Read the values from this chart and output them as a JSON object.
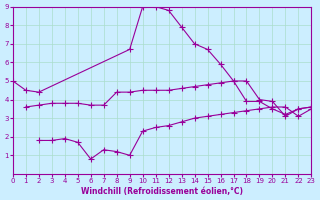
{
  "title": "",
  "xlabel": "Windchill (Refroidissement éolien,°C)",
  "ylabel": "",
  "bg_color": "#cceeff",
  "line_color": "#990099",
  "xlim": [
    0,
    23
  ],
  "ylim": [
    0,
    9
  ],
  "xticks": [
    0,
    1,
    2,
    3,
    4,
    5,
    6,
    7,
    8,
    9,
    10,
    11,
    12,
    13,
    14,
    15,
    16,
    17,
    18,
    19,
    20,
    21,
    22,
    23
  ],
  "yticks": [
    1,
    2,
    3,
    4,
    5,
    6,
    7,
    8,
    9
  ],
  "line1_x": [
    0,
    1,
    2,
    9,
    10,
    11,
    12,
    13,
    14,
    15,
    16,
    17,
    18,
    19,
    20,
    21,
    22,
    23
  ],
  "line1_y": [
    5.0,
    4.5,
    4.4,
    6.7,
    9.0,
    9.0,
    8.8,
    7.9,
    7.0,
    6.7,
    5.9,
    5.0,
    3.9,
    3.9,
    3.5,
    3.2,
    3.5,
    3.6
  ],
  "line2_x": [
    1,
    2,
    3,
    4,
    5,
    6,
    7,
    8,
    9,
    10,
    11,
    12,
    13,
    14,
    15,
    16,
    17,
    18,
    19,
    20,
    21,
    22,
    23
  ],
  "line2_y": [
    3.6,
    3.7,
    3.8,
    3.8,
    3.8,
    3.7,
    3.7,
    4.4,
    4.4,
    4.5,
    4.5,
    4.5,
    4.6,
    4.7,
    4.8,
    4.9,
    5.0,
    5.0,
    4.0,
    3.9,
    3.1,
    3.5,
    3.6
  ],
  "line3_x": [
    2,
    3,
    4,
    5,
    6,
    7,
    8,
    9,
    10,
    11,
    12,
    13,
    14,
    15,
    16,
    17,
    18,
    19,
    20,
    21,
    22,
    23
  ],
  "line3_y": [
    1.8,
    1.8,
    1.9,
    1.7,
    0.8,
    1.3,
    1.2,
    1.0,
    2.3,
    2.5,
    2.6,
    2.8,
    3.0,
    3.1,
    3.2,
    3.3,
    3.4,
    3.5,
    3.6,
    3.6,
    3.1,
    3.5
  ]
}
